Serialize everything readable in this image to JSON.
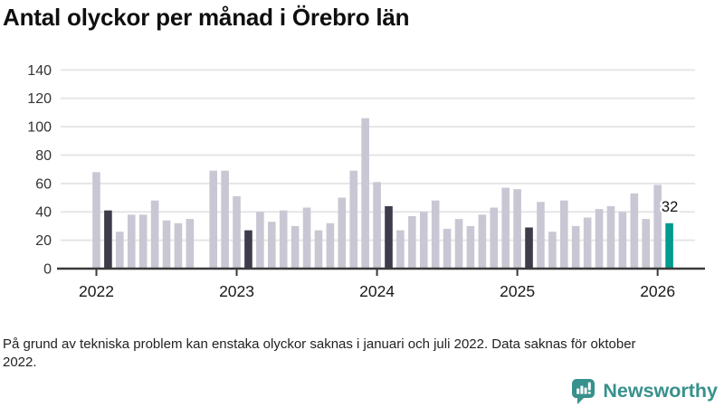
{
  "title": "Antal olyckor per månad i Örebro län",
  "footnote": "På grund av tekniska problem kan enstaka olyckor saknas i januari och juli 2022. Data saknas för oktober 2022.",
  "branding": {
    "name": "Newsworthy"
  },
  "colors": {
    "regular": "#c9c7d3",
    "reference": "#3d3c4a",
    "current": "#009a8f",
    "axis": "#3a3a3a",
    "grid": "#e6e6e8",
    "tick_label": "#333333",
    "year_label": "#1a1a1a",
    "annotation_text": "#111111",
    "brand_teal": "#37918c"
  },
  "chart_data": {
    "type": "bar",
    "title": "Antal olyckor per månad i Örebro län",
    "xlabel": "",
    "ylabel": "",
    "ylim": [
      0,
      140
    ],
    "yticks": [
      0,
      20,
      40,
      60,
      80,
      100,
      120,
      140
    ],
    "xticks": [
      "2022",
      "2023",
      "2024",
      "2025",
      "2026"
    ],
    "grid": "horizontal",
    "legend": "none",
    "missing_months": [
      "2022-10"
    ],
    "annotation": {
      "text": "32",
      "month": "2026-02"
    },
    "bars": [
      {
        "month": "2022-01",
        "value": 68,
        "type": "regular"
      },
      {
        "month": "2022-02",
        "value": 41,
        "type": "reference"
      },
      {
        "month": "2022-03",
        "value": 26,
        "type": "regular"
      },
      {
        "month": "2022-04",
        "value": 38,
        "type": "regular"
      },
      {
        "month": "2022-05",
        "value": 38,
        "type": "regular"
      },
      {
        "month": "2022-06",
        "value": 48,
        "type": "regular"
      },
      {
        "month": "2022-07",
        "value": 34,
        "type": "regular"
      },
      {
        "month": "2022-08",
        "value": 32,
        "type": "regular"
      },
      {
        "month": "2022-09",
        "value": 35,
        "type": "regular"
      },
      {
        "month": "2022-10",
        "value": null,
        "type": "missing"
      },
      {
        "month": "2022-11",
        "value": 69,
        "type": "regular"
      },
      {
        "month": "2022-12",
        "value": 69,
        "type": "regular"
      },
      {
        "month": "2023-01",
        "value": 51,
        "type": "regular"
      },
      {
        "month": "2023-02",
        "value": 27,
        "type": "reference"
      },
      {
        "month": "2023-03",
        "value": 40,
        "type": "regular"
      },
      {
        "month": "2023-04",
        "value": 33,
        "type": "regular"
      },
      {
        "month": "2023-05",
        "value": 41,
        "type": "regular"
      },
      {
        "month": "2023-06",
        "value": 30,
        "type": "regular"
      },
      {
        "month": "2023-07",
        "value": 43,
        "type": "regular"
      },
      {
        "month": "2023-08",
        "value": 27,
        "type": "regular"
      },
      {
        "month": "2023-09",
        "value": 32,
        "type": "regular"
      },
      {
        "month": "2023-10",
        "value": 50,
        "type": "regular"
      },
      {
        "month": "2023-11",
        "value": 69,
        "type": "regular"
      },
      {
        "month": "2023-12",
        "value": 106,
        "type": "regular"
      },
      {
        "month": "2024-01",
        "value": 61,
        "type": "regular"
      },
      {
        "month": "2024-02",
        "value": 44,
        "type": "reference"
      },
      {
        "month": "2024-03",
        "value": 27,
        "type": "regular"
      },
      {
        "month": "2024-04",
        "value": 37,
        "type": "regular"
      },
      {
        "month": "2024-05",
        "value": 40,
        "type": "regular"
      },
      {
        "month": "2024-06",
        "value": 48,
        "type": "regular"
      },
      {
        "month": "2024-07",
        "value": 28,
        "type": "regular"
      },
      {
        "month": "2024-08",
        "value": 35,
        "type": "regular"
      },
      {
        "month": "2024-09",
        "value": 30,
        "type": "regular"
      },
      {
        "month": "2024-10",
        "value": 38,
        "type": "regular"
      },
      {
        "month": "2024-11",
        "value": 43,
        "type": "regular"
      },
      {
        "month": "2024-12",
        "value": 57,
        "type": "regular"
      },
      {
        "month": "2025-01",
        "value": 56,
        "type": "regular"
      },
      {
        "month": "2025-02",
        "value": 29,
        "type": "reference"
      },
      {
        "month": "2025-03",
        "value": 47,
        "type": "regular"
      },
      {
        "month": "2025-04",
        "value": 26,
        "type": "regular"
      },
      {
        "month": "2025-05",
        "value": 48,
        "type": "regular"
      },
      {
        "month": "2025-06",
        "value": 30,
        "type": "regular"
      },
      {
        "month": "2025-07",
        "value": 36,
        "type": "regular"
      },
      {
        "month": "2025-08",
        "value": 42,
        "type": "regular"
      },
      {
        "month": "2025-09",
        "value": 44,
        "type": "regular"
      },
      {
        "month": "2025-10",
        "value": 40,
        "type": "regular"
      },
      {
        "month": "2025-11",
        "value": 53,
        "type": "regular"
      },
      {
        "month": "2025-12",
        "value": 35,
        "type": "regular"
      },
      {
        "month": "2026-01",
        "value": 59,
        "type": "regular"
      },
      {
        "month": "2026-02",
        "value": 32,
        "type": "current"
      }
    ]
  }
}
